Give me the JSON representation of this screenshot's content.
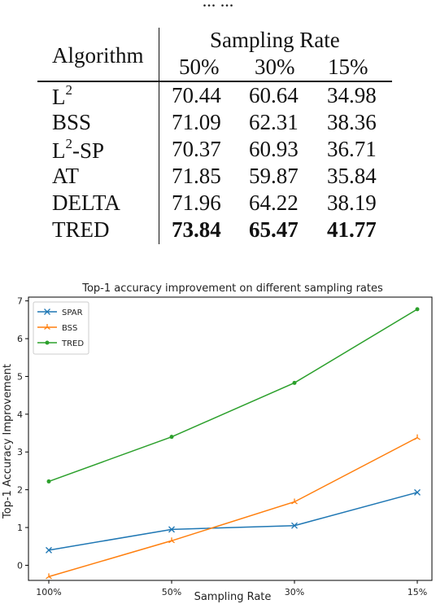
{
  "top_fragment": "... ...",
  "table": {
    "col_header": "Algorithm",
    "group_header": "Sampling Rate",
    "sub_headers": [
      "50%",
      "30%",
      "15%"
    ],
    "rows": [
      {
        "name": "L",
        "sup": "2",
        "name_suffix": "",
        "values": [
          "70.44",
          "60.64",
          "34.98"
        ]
      },
      {
        "name": "BSS",
        "sup": "",
        "name_suffix": "",
        "values": [
          "71.09",
          "62.31",
          "38.36"
        ]
      },
      {
        "name": "L",
        "sup": "2",
        "name_suffix": "-SP",
        "values": [
          "70.37",
          "60.93",
          "36.71"
        ]
      },
      {
        "name": "AT",
        "sup": "",
        "name_suffix": "",
        "values": [
          "71.85",
          "59.87",
          "35.84"
        ]
      },
      {
        "name": "DELTA",
        "sup": "",
        "name_suffix": "",
        "values": [
          "71.96",
          "64.22",
          "38.19"
        ]
      },
      {
        "name": "TRED",
        "sup": "",
        "name_suffix": "",
        "values": [
          "73.84",
          "65.47",
          "41.77"
        ],
        "bold": true
      }
    ]
  },
  "chart_data": {
    "type": "line",
    "title": "Top-1 accuracy improvement on different sampling rates",
    "xlabel": "Sampling Rate",
    "ylabel": "Top-1 Accuracy Improvement",
    "categories": [
      "100%",
      "50%",
      "30%",
      "15%"
    ],
    "ylim": [
      -0.4,
      7.1
    ],
    "yticks": [
      0,
      1,
      2,
      3,
      4,
      5,
      6,
      7
    ],
    "legend_position": "top-left",
    "series": [
      {
        "name": "SPAR",
        "color": "#1f77b4",
        "marker": "x",
        "values": [
          0.4,
          0.95,
          1.05,
          1.93
        ]
      },
      {
        "name": "BSS",
        "color": "#ff7f0e",
        "marker": "tri",
        "values": [
          -0.3,
          0.65,
          1.68,
          3.38
        ]
      },
      {
        "name": "TRED",
        "color": "#2ca02c",
        "marker": "dot",
        "values": [
          2.22,
          3.4,
          4.83,
          6.78
        ]
      }
    ]
  }
}
